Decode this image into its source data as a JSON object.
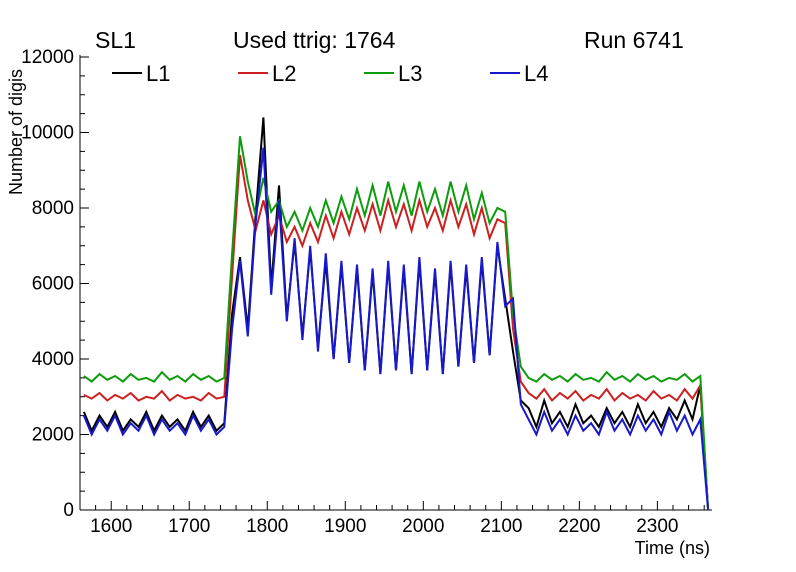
{
  "titles": {
    "left": "SL1",
    "center": "Used ttrig: 1764",
    "right": "Run 6741"
  },
  "chart_data": {
    "type": "line",
    "title": "Used ttrig: 1764",
    "xlabel": "Time (ns)",
    "ylabel": "Number of digis",
    "xlim": [
      1560,
      2370
    ],
    "ylim": [
      0,
      12000
    ],
    "xticks": [
      1600,
      1700,
      1800,
      1900,
      2000,
      2100,
      2200,
      2300
    ],
    "yticks": [
      0,
      2000,
      4000,
      6000,
      8000,
      10000,
      12000
    ],
    "legend_position": "top-inside-horizontal",
    "grid": false,
    "x": [
      1565,
      1575,
      1585,
      1595,
      1605,
      1615,
      1625,
      1635,
      1645,
      1655,
      1665,
      1675,
      1685,
      1695,
      1705,
      1715,
      1725,
      1735,
      1745,
      1755,
      1765,
      1775,
      1785,
      1795,
      1805,
      1815,
      1825,
      1835,
      1845,
      1855,
      1865,
      1875,
      1885,
      1895,
      1905,
      1915,
      1925,
      1935,
      1945,
      1955,
      1965,
      1975,
      1985,
      1995,
      2005,
      2015,
      2025,
      2035,
      2045,
      2055,
      2065,
      2075,
      2085,
      2095,
      2105,
      2115,
      2125,
      2135,
      2145,
      2155,
      2165,
      2175,
      2185,
      2195,
      2205,
      2215,
      2225,
      2235,
      2245,
      2255,
      2265,
      2275,
      2285,
      2295,
      2305,
      2315,
      2325,
      2335,
      2345,
      2355,
      2365
    ],
    "series": [
      {
        "name": "L1",
        "color": "#000000",
        "values": [
          2600,
          2100,
          2500,
          2200,
          2600,
          2100,
          2400,
          2200,
          2600,
          2100,
          2500,
          2200,
          2400,
          2100,
          2600,
          2200,
          2500,
          2100,
          2300,
          5200,
          6700,
          4800,
          7800,
          10400,
          5900,
          8600,
          5100,
          7100,
          4600,
          6900,
          4300,
          6600,
          4000,
          6500,
          3900,
          6400,
          3700,
          6300,
          3600,
          6500,
          3700,
          6400,
          3600,
          6600,
          3700,
          6300,
          3600,
          6500,
          3800,
          6400,
          3900,
          6600,
          4100,
          7000,
          5600,
          4200,
          2900,
          2700,
          2200,
          2900,
          2300,
          2600,
          2200,
          2800,
          2300,
          2500,
          2200,
          2700,
          2300,
          2600,
          2200,
          2800,
          2300,
          2600,
          2200,
          2700,
          2400,
          2900,
          2400,
          3300,
          0
        ]
      },
      {
        "name": "L2",
        "color": "#cc2020",
        "values": [
          3050,
          2950,
          3100,
          2900,
          3050,
          2950,
          3100,
          2900,
          3000,
          2950,
          3150,
          2900,
          3050,
          2950,
          3000,
          2900,
          3100,
          2950,
          3000,
          6200,
          9400,
          8200,
          7400,
          8200,
          7300,
          7800,
          7100,
          7500,
          7000,
          7600,
          7100,
          7800,
          7200,
          7900,
          7300,
          8000,
          7400,
          8100,
          7400,
          8200,
          7500,
          8100,
          7400,
          8200,
          7500,
          8000,
          7400,
          8200,
          7500,
          8100,
          7300,
          8000,
          7200,
          7700,
          7600,
          4800,
          3400,
          3100,
          2950,
          3200,
          2900,
          3100,
          2950,
          3150,
          2900,
          3050,
          2950,
          3200,
          2900,
          3100,
          2950,
          3050,
          2900,
          3150,
          2950,
          3050,
          2900,
          3200,
          2950,
          3300,
          0
        ]
      },
      {
        "name": "L3",
        "color": "#0c9c0c",
        "values": [
          3550,
          3400,
          3600,
          3450,
          3550,
          3400,
          3600,
          3450,
          3500,
          3400,
          3650,
          3450,
          3550,
          3400,
          3600,
          3450,
          3550,
          3400,
          3500,
          6800,
          9900,
          8700,
          7800,
          8800,
          7900,
          8200,
          7500,
          7900,
          7400,
          8000,
          7500,
          8200,
          7600,
          8300,
          7700,
          8500,
          7800,
          8600,
          7800,
          8700,
          7900,
          8600,
          7800,
          8700,
          7900,
          8500,
          7800,
          8700,
          7900,
          8600,
          7700,
          8400,
          7600,
          8000,
          7900,
          5200,
          3800,
          3500,
          3400,
          3600,
          3450,
          3550,
          3400,
          3600,
          3450,
          3500,
          3400,
          3650,
          3450,
          3550,
          3400,
          3600,
          3450,
          3550,
          3400,
          3500,
          3450,
          3600,
          3400,
          3550,
          0
        ]
      },
      {
        "name": "L4",
        "color": "#1818cc",
        "values": [
          2500,
          2000,
          2400,
          2100,
          2500,
          2000,
          2300,
          2100,
          2500,
          2000,
          2400,
          2100,
          2300,
          2000,
          2500,
          2100,
          2400,
          2000,
          2200,
          4800,
          6600,
          4600,
          7600,
          9600,
          5700,
          8200,
          5000,
          7200,
          4500,
          7000,
          4200,
          6800,
          4000,
          6600,
          3900,
          6500,
          3700,
          6400,
          3600,
          6600,
          3700,
          6500,
          3600,
          6700,
          3700,
          6400,
          3600,
          6600,
          3800,
          6500,
          3900,
          6700,
          4100,
          7100,
          5400,
          5600,
          2800,
          2400,
          2000,
          2600,
          2100,
          2400,
          2000,
          2500,
          2100,
          2300,
          2000,
          2600,
          2100,
          2400,
          2000,
          2500,
          2100,
          2400,
          2000,
          2600,
          2100,
          2500,
          2000,
          2400,
          0
        ]
      }
    ]
  }
}
